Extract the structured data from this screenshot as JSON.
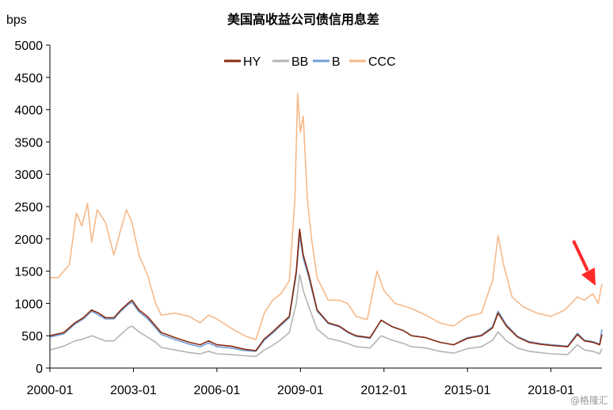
{
  "watermark": "@格隆汇",
  "chart_data": {
    "type": "line",
    "title": "美国高收益公司债信用息差",
    "ylabel": "bps",
    "xlabel": "",
    "xlim": [
      2000.0,
      2019.83
    ],
    "ylim": [
      0,
      5000
    ],
    "y_ticks": [
      "0",
      "500",
      "1000",
      "1500",
      "2000",
      "2500",
      "3000",
      "3500",
      "4000",
      "4500",
      "5000"
    ],
    "x_tick_labels": [
      "2000-01",
      "2003-01",
      "2006-01",
      "2009-01",
      "2012-01",
      "2015-01",
      "2018-01"
    ],
    "grid": false,
    "legend_position": "top-center",
    "series": [
      {
        "name": "HY",
        "color": "#8b2a0e",
        "points": [
          [
            2000.0,
            500
          ],
          [
            2000.5,
            550
          ],
          [
            2000.9,
            700
          ],
          [
            2001.2,
            780
          ],
          [
            2001.5,
            900
          ],
          [
            2001.75,
            850
          ],
          [
            2002.0,
            780
          ],
          [
            2002.3,
            780
          ],
          [
            2002.55,
            900
          ],
          [
            2002.8,
            1000
          ],
          [
            2002.95,
            1050
          ],
          [
            2003.2,
            900
          ],
          [
            2003.5,
            800
          ],
          [
            2003.8,
            650
          ],
          [
            2004.0,
            550
          ],
          [
            2004.5,
            470
          ],
          [
            2005.0,
            400
          ],
          [
            2005.4,
            360
          ],
          [
            2005.7,
            420
          ],
          [
            2006.0,
            360
          ],
          [
            2006.5,
            340
          ],
          [
            2007.0,
            290
          ],
          [
            2007.4,
            270
          ],
          [
            2007.7,
            450
          ],
          [
            2008.0,
            560
          ],
          [
            2008.3,
            680
          ],
          [
            2008.6,
            800
          ],
          [
            2008.85,
            1500
          ],
          [
            2008.97,
            2150
          ],
          [
            2009.1,
            1750
          ],
          [
            2009.3,
            1450
          ],
          [
            2009.6,
            900
          ],
          [
            2010.0,
            700
          ],
          [
            2010.4,
            650
          ],
          [
            2010.7,
            560
          ],
          [
            2011.0,
            500
          ],
          [
            2011.5,
            470
          ],
          [
            2011.9,
            740
          ],
          [
            2012.3,
            640
          ],
          [
            2012.7,
            580
          ],
          [
            2013.0,
            500
          ],
          [
            2013.5,
            470
          ],
          [
            2014.0,
            400
          ],
          [
            2014.5,
            360
          ],
          [
            2015.0,
            460
          ],
          [
            2015.5,
            500
          ],
          [
            2015.9,
            620
          ],
          [
            2016.1,
            850
          ],
          [
            2016.4,
            650
          ],
          [
            2016.8,
            480
          ],
          [
            2017.2,
            400
          ],
          [
            2017.6,
            370
          ],
          [
            2018.0,
            350
          ],
          [
            2018.6,
            330
          ],
          [
            2018.95,
            520
          ],
          [
            2019.2,
            420
          ],
          [
            2019.5,
            400
          ],
          [
            2019.75,
            360
          ],
          [
            2019.83,
            520
          ]
        ]
      },
      {
        "name": "BB",
        "color": "#b4b4b4",
        "points": [
          [
            2000.0,
            280
          ],
          [
            2000.5,
            340
          ],
          [
            2000.9,
            420
          ],
          [
            2001.2,
            450
          ],
          [
            2001.5,
            500
          ],
          [
            2001.75,
            460
          ],
          [
            2002.0,
            420
          ],
          [
            2002.3,
            420
          ],
          [
            2002.55,
            520
          ],
          [
            2002.8,
            620
          ],
          [
            2002.95,
            650
          ],
          [
            2003.2,
            560
          ],
          [
            2003.5,
            480
          ],
          [
            2003.8,
            400
          ],
          [
            2004.0,
            320
          ],
          [
            2004.5,
            280
          ],
          [
            2005.0,
            240
          ],
          [
            2005.4,
            220
          ],
          [
            2005.7,
            260
          ],
          [
            2006.0,
            220
          ],
          [
            2006.5,
            210
          ],
          [
            2007.0,
            190
          ],
          [
            2007.4,
            180
          ],
          [
            2007.7,
            280
          ],
          [
            2008.0,
            350
          ],
          [
            2008.3,
            440
          ],
          [
            2008.6,
            550
          ],
          [
            2008.85,
            1000
          ],
          [
            2008.97,
            1450
          ],
          [
            2009.1,
            1200
          ],
          [
            2009.3,
            950
          ],
          [
            2009.6,
            600
          ],
          [
            2010.0,
            460
          ],
          [
            2010.4,
            420
          ],
          [
            2010.7,
            380
          ],
          [
            2011.0,
            330
          ],
          [
            2011.5,
            310
          ],
          [
            2011.9,
            500
          ],
          [
            2012.3,
            430
          ],
          [
            2012.7,
            380
          ],
          [
            2013.0,
            330
          ],
          [
            2013.5,
            310
          ],
          [
            2014.0,
            260
          ],
          [
            2014.5,
            230
          ],
          [
            2015.0,
            300
          ],
          [
            2015.5,
            330
          ],
          [
            2015.9,
            430
          ],
          [
            2016.1,
            560
          ],
          [
            2016.4,
            420
          ],
          [
            2016.8,
            310
          ],
          [
            2017.2,
            260
          ],
          [
            2017.6,
            240
          ],
          [
            2018.0,
            220
          ],
          [
            2018.6,
            210
          ],
          [
            2018.95,
            360
          ],
          [
            2019.2,
            280
          ],
          [
            2019.5,
            260
          ],
          [
            2019.75,
            220
          ],
          [
            2019.83,
            300
          ]
        ]
      },
      {
        "name": "B",
        "color": "#6f9fd8",
        "points": [
          [
            2000.0,
            480
          ],
          [
            2000.5,
            530
          ],
          [
            2000.9,
            680
          ],
          [
            2001.2,
            760
          ],
          [
            2001.5,
            880
          ],
          [
            2001.75,
            820
          ],
          [
            2002.0,
            760
          ],
          [
            2002.3,
            760
          ],
          [
            2002.55,
            880
          ],
          [
            2002.8,
            980
          ],
          [
            2002.95,
            1020
          ],
          [
            2003.2,
            870
          ],
          [
            2003.5,
            770
          ],
          [
            2003.8,
            620
          ],
          [
            2004.0,
            520
          ],
          [
            2004.5,
            440
          ],
          [
            2005.0,
            370
          ],
          [
            2005.4,
            330
          ],
          [
            2005.7,
            390
          ],
          [
            2006.0,
            330
          ],
          [
            2006.5,
            310
          ],
          [
            2007.0,
            270
          ],
          [
            2007.4,
            260
          ],
          [
            2007.7,
            430
          ],
          [
            2008.0,
            540
          ],
          [
            2008.3,
            660
          ],
          [
            2008.6,
            780
          ],
          [
            2008.85,
            1450
          ],
          [
            2008.97,
            2050
          ],
          [
            2009.1,
            1700
          ],
          [
            2009.3,
            1400
          ],
          [
            2009.6,
            880
          ],
          [
            2010.0,
            690
          ],
          [
            2010.4,
            640
          ],
          [
            2010.7,
            550
          ],
          [
            2011.0,
            490
          ],
          [
            2011.5,
            460
          ],
          [
            2011.9,
            740
          ],
          [
            2012.3,
            640
          ],
          [
            2012.7,
            580
          ],
          [
            2013.0,
            500
          ],
          [
            2013.5,
            470
          ],
          [
            2014.0,
            400
          ],
          [
            2014.5,
            360
          ],
          [
            2015.0,
            470
          ],
          [
            2015.5,
            510
          ],
          [
            2015.9,
            640
          ],
          [
            2016.1,
            880
          ],
          [
            2016.4,
            670
          ],
          [
            2016.8,
            490
          ],
          [
            2017.2,
            410
          ],
          [
            2017.6,
            380
          ],
          [
            2018.0,
            360
          ],
          [
            2018.6,
            340
          ],
          [
            2018.95,
            540
          ],
          [
            2019.2,
            430
          ],
          [
            2019.5,
            410
          ],
          [
            2019.75,
            370
          ],
          [
            2019.83,
            600
          ]
        ]
      },
      {
        "name": "CCC",
        "color": "#f5b98a",
        "points": [
          [
            2000.0,
            1400
          ],
          [
            2000.3,
            1400
          ],
          [
            2000.7,
            1600
          ],
          [
            2000.95,
            2400
          ],
          [
            2001.15,
            2200
          ],
          [
            2001.35,
            2550
          ],
          [
            2001.5,
            1950
          ],
          [
            2001.7,
            2450
          ],
          [
            2002.0,
            2250
          ],
          [
            2002.3,
            1750
          ],
          [
            2002.55,
            2150
          ],
          [
            2002.75,
            2450
          ],
          [
            2002.95,
            2250
          ],
          [
            2003.2,
            1750
          ],
          [
            2003.5,
            1450
          ],
          [
            2003.8,
            1000
          ],
          [
            2004.0,
            820
          ],
          [
            2004.5,
            850
          ],
          [
            2005.0,
            800
          ],
          [
            2005.4,
            700
          ],
          [
            2005.7,
            820
          ],
          [
            2006.0,
            760
          ],
          [
            2006.5,
            620
          ],
          [
            2007.0,
            500
          ],
          [
            2007.4,
            440
          ],
          [
            2007.7,
            850
          ],
          [
            2008.0,
            1050
          ],
          [
            2008.3,
            1150
          ],
          [
            2008.6,
            1350
          ],
          [
            2008.8,
            2600
          ],
          [
            2008.9,
            4250
          ],
          [
            2009.0,
            3650
          ],
          [
            2009.1,
            3900
          ],
          [
            2009.25,
            2600
          ],
          [
            2009.4,
            2000
          ],
          [
            2009.6,
            1400
          ],
          [
            2010.0,
            1050
          ],
          [
            2010.4,
            1050
          ],
          [
            2010.7,
            1000
          ],
          [
            2011.0,
            800
          ],
          [
            2011.4,
            750
          ],
          [
            2011.75,
            1500
          ],
          [
            2012.0,
            1200
          ],
          [
            2012.4,
            1000
          ],
          [
            2012.8,
            950
          ],
          [
            2013.0,
            920
          ],
          [
            2013.5,
            820
          ],
          [
            2014.0,
            700
          ],
          [
            2014.5,
            650
          ],
          [
            2015.0,
            800
          ],
          [
            2015.5,
            850
          ],
          [
            2015.9,
            1350
          ],
          [
            2016.1,
            2050
          ],
          [
            2016.3,
            1600
          ],
          [
            2016.6,
            1100
          ],
          [
            2017.0,
            950
          ],
          [
            2017.5,
            850
          ],
          [
            2018.0,
            800
          ],
          [
            2018.5,
            900
          ],
          [
            2018.95,
            1100
          ],
          [
            2019.2,
            1050
          ],
          [
            2019.5,
            1150
          ],
          [
            2019.7,
            1000
          ],
          [
            2019.83,
            1300
          ]
        ]
      }
    ]
  }
}
